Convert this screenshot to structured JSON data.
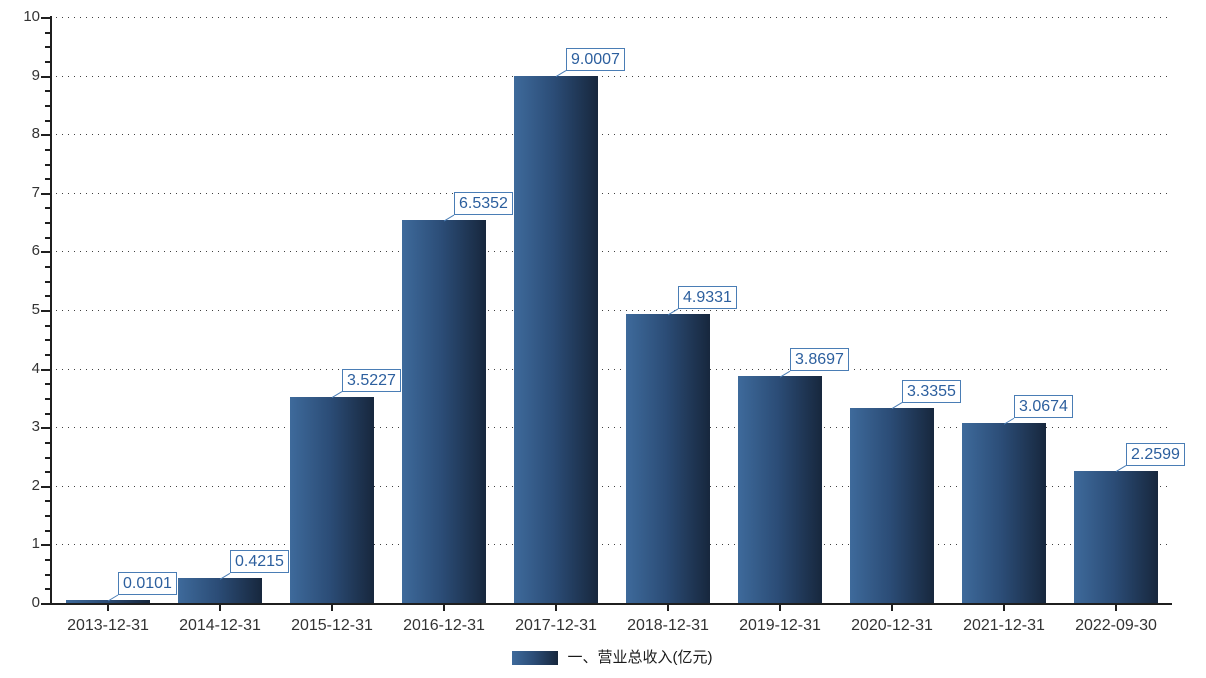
{
  "chart_data": {
    "type": "bar",
    "title": "",
    "categories": [
      "2013-12-31",
      "2014-12-31",
      "2015-12-31",
      "2016-12-31",
      "2017-12-31",
      "2018-12-31",
      "2019-12-31",
      "2020-12-31",
      "2021-12-31",
      "2022-09-30"
    ],
    "series": [
      {
        "name": "一、营业总收入(亿元)",
        "values": [
          0.0101,
          0.4215,
          3.5227,
          6.5352,
          9.0007,
          4.9331,
          3.8697,
          3.3355,
          3.0674,
          2.2599
        ]
      }
    ],
    "value_labels": [
      "0.0101",
      "0.4215",
      "3.5227",
      "6.5352",
      "9.0007",
      "4.9331",
      "3.8697",
      "3.3355",
      "3.0674",
      "2.2599"
    ],
    "xlabel": "",
    "ylabel": "",
    "ylim": [
      0,
      10
    ],
    "y_major_ticks": [
      0,
      1,
      2,
      3,
      4,
      5,
      6,
      7,
      8,
      9,
      10
    ],
    "y_minor_tick_step": 0.25,
    "grid": "horizontal-dotted",
    "legend_position": "bottom-center"
  },
  "colors": {
    "bar_gradient_start": "#3e6a9b",
    "bar_gradient_mid": "#2b4c76",
    "bar_gradient_end": "#17273d",
    "annotation_border": "#4a7db5",
    "annotation_text": "#2c5f9e",
    "axis_line": "#1f1f1f",
    "grid_dots": "#404040",
    "tick_text": "#333333",
    "background": "#ffffff"
  }
}
